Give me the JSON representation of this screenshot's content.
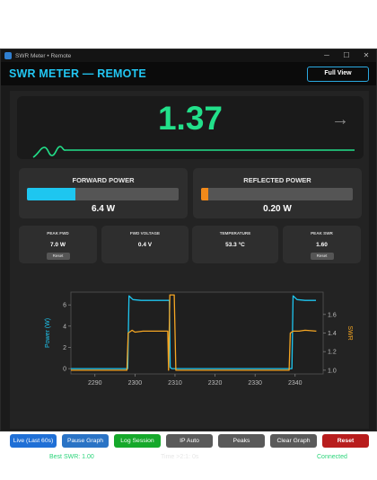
{
  "window": {
    "title": "SWR Meter • Remote",
    "controls": {
      "minimize": "─",
      "maximize": "☐",
      "close": "✕"
    }
  },
  "header": {
    "title": "SWR METER — REMOTE",
    "full_view_label": "Full View"
  },
  "swr": {
    "value": "1.37",
    "trend_icon": "→",
    "accent": "#22e08a"
  },
  "forward_power": {
    "title": "FORWARD POWER",
    "value": "6.4 W",
    "fill_fraction": 0.32,
    "color": "#1ec6f0"
  },
  "reflected_power": {
    "title": "REFLECTED POWER",
    "value": "0.20 W",
    "fill_fraction": 0.05,
    "color": "#f28a1a"
  },
  "stats": [
    {
      "label": "PEAK FWD",
      "value": "7.0 W",
      "reset": "Reset"
    },
    {
      "label": "FWD VOLTAGE",
      "value": "0.4 V",
      "reset": ""
    },
    {
      "label": "TEMPERATURE",
      "value": "53.3 °C",
      "reset": ""
    },
    {
      "label": "PEAK SWR",
      "value": "1.60",
      "reset": "Reset"
    }
  ],
  "chart_data": {
    "type": "line",
    "title": "",
    "xlabel": "",
    "ylabel": "Power (W)",
    "y2label": "SWR",
    "xlim": [
      2284,
      2347
    ],
    "ylim": [
      -0.5,
      7.2
    ],
    "y2lim": [
      0.96,
      1.84
    ],
    "x_ticks": [
      2290,
      2300,
      2310,
      2320,
      2330,
      2340
    ],
    "y_ticks": [
      0,
      2,
      4,
      6
    ],
    "y2_ticks": [
      1.0,
      1.2,
      1.4,
      1.6
    ],
    "grid": false,
    "series": [
      {
        "axis": "left",
        "color": "#1ec6f0",
        "x": [
          2284,
          2298.2,
          2298.5,
          2299.5,
          2301.5,
          2304,
          2306,
          2307.2,
          2308.6,
          2308.8,
          2309.2,
          2309.4,
          2310.4,
          2323,
          2337,
          2339.2,
          2339.5,
          2340.5,
          2342.5,
          2345.2
        ],
        "y": [
          0,
          0,
          6.85,
          6.5,
          6.42,
          6.42,
          6.42,
          6.42,
          6.42,
          0.12,
          0,
          0,
          0,
          0,
          0,
          0,
          6.85,
          6.5,
          6.42,
          6.42
        ]
      },
      {
        "axis": "right",
        "color": "#f5a623",
        "x": [
          2284,
          2298,
          2298.3,
          2299.3,
          2300,
          2302,
          2304,
          2306,
          2308.2,
          2308.4,
          2308.7,
          2309.8,
          2310.2,
          2310.6,
          2323,
          2338.5,
          2338.8,
          2339.5,
          2341,
          2342.5,
          2345.3
        ],
        "y": [
          1.0,
          1.0,
          1.4,
          1.43,
          1.41,
          1.42,
          1.42,
          1.42,
          1.42,
          1.0,
          1.81,
          1.81,
          1.0,
          1.0,
          1.0,
          1.0,
          1.4,
          1.42,
          1.42,
          1.43,
          1.42
        ]
      }
    ]
  },
  "buttons": [
    {
      "label": "Live (Last 60s)",
      "color": "#1f6fd6",
      "name": "live-button"
    },
    {
      "label": "Pause Graph",
      "color": "#2a73c5",
      "name": "pause-graph-button"
    },
    {
      "label": "Log Session",
      "color": "#15a82a",
      "name": "log-session-button"
    },
    {
      "label": "IP Auto",
      "color": "#5a5a5a",
      "name": "ip-auto-button"
    },
    {
      "label": "Peaks",
      "color": "#5a5a5a",
      "name": "peaks-button"
    },
    {
      "label": "Clear Graph",
      "color": "#5a5a5a",
      "name": "clear-graph-button"
    },
    {
      "label": "Reset",
      "color": "#b81d1d",
      "name": "reset-button"
    }
  ],
  "status": {
    "best_swr": "Best SWR: 1.00",
    "time_label": "Time >2:1: 0s",
    "connection": "Connected"
  }
}
